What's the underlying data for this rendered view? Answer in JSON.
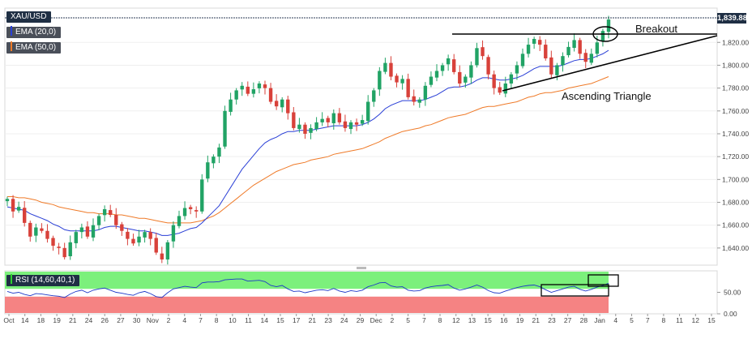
{
  "symbol_label": "XAU/USD",
  "price_label": "1,839.88",
  "indicators": [
    {
      "label": "EMA (20,0)",
      "color": "#2a3fd6"
    },
    {
      "label": "EMA (50,0)",
      "color": "#ef7a28"
    }
  ],
  "rsi_label": "RSI (14,60,40,1)",
  "annotations": {
    "breakout": "Breakout",
    "pattern": "Ascending Triangle"
  },
  "colors": {
    "bull": "#21a365",
    "bear": "#d8413a",
    "ema20": "#2a3fd6",
    "ema50": "#ef7a28",
    "rsi_line": "#1d38c8",
    "rsi_upper_zone": "#7cf07c",
    "rsi_lower_zone": "#f58383"
  },
  "chart_data": {
    "type": "candlestick",
    "instrument": "XAU/USD",
    "ylim": [
      1625,
      1850
    ],
    "y_ticks": [
      1640,
      1660,
      1680,
      1700,
      1720,
      1740,
      1760,
      1780,
      1800,
      1820
    ],
    "y_tick_labels": [
      "1,640.00",
      "1,660.00",
      "1,680.00",
      "1,700.00",
      "1,720.00",
      "1,740.00",
      "1,760.00",
      "1,780.00",
      "1,800.00",
      "1,820.00"
    ],
    "x_tick_labels": [
      "Oct",
      "14",
      "18",
      "19",
      "21",
      "24",
      "26",
      "27",
      "30",
      "Nov",
      "2",
      "4",
      "7",
      "8",
      "10",
      "11",
      "14",
      "15",
      "17",
      "21",
      "23",
      "24",
      "29",
      "Dec",
      "2",
      "5",
      "7",
      "8",
      "12",
      "13",
      "15",
      "16",
      "19",
      "21",
      "23",
      "27",
      "28",
      "Jan",
      "4",
      "5",
      "7",
      "8",
      "11",
      "12",
      "15"
    ],
    "last_price": 1839.88,
    "closes": [
      1683,
      1672,
      1676,
      1662,
      1650,
      1658,
      1655,
      1648,
      1642,
      1640,
      1632,
      1645,
      1654,
      1658,
      1650,
      1660,
      1668,
      1674,
      1669,
      1660,
      1655,
      1648,
      1644,
      1650,
      1654,
      1648,
      1636,
      1630,
      1645,
      1660,
      1668,
      1675,
      1674,
      1672,
      1700,
      1715,
      1720,
      1728,
      1760,
      1770,
      1778,
      1782,
      1775,
      1779,
      1784,
      1780,
      1768,
      1764,
      1770,
      1758,
      1745,
      1748,
      1740,
      1745,
      1750,
      1753,
      1750,
      1758,
      1750,
      1745,
      1750,
      1748,
      1752,
      1768,
      1778,
      1795,
      1802,
      1790,
      1785,
      1788,
      1772,
      1768,
      1770,
      1782,
      1790,
      1795,
      1800,
      1806,
      1794,
      1784,
      1790,
      1800,
      1815,
      1808,
      1792,
      1780,
      1776,
      1784,
      1792,
      1800,
      1810,
      1818,
      1823,
      1818,
      1806,
      1792,
      1800,
      1808,
      1816,
      1822,
      1810,
      1803,
      1810,
      1820,
      1830,
      1840
    ],
    "ema20": [
      1676,
      1675,
      1674,
      1673,
      1670,
      1668,
      1666,
      1664,
      1661,
      1659,
      1656,
      1655,
      1655,
      1655,
      1655,
      1655,
      1656,
      1658,
      1659,
      1659,
      1658,
      1657,
      1656,
      1655,
      1655,
      1654,
      1653,
      1651,
      1651,
      1652,
      1653,
      1655,
      1657,
      1658,
      1662,
      1667,
      1672,
      1677,
      1685,
      1693,
      1701,
      1709,
      1715,
      1721,
      1727,
      1732,
      1735,
      1737,
      1740,
      1742,
      1742,
      1743,
      1743,
      1743,
      1744,
      1745,
      1746,
      1747,
      1747,
      1747,
      1747,
      1747,
      1748,
      1750,
      1753,
      1757,
      1762,
      1765,
      1767,
      1769,
      1769,
      1769,
      1769,
      1770,
      1772,
      1774,
      1777,
      1780,
      1781,
      1781,
      1782,
      1784,
      1787,
      1789,
      1789,
      1788,
      1787,
      1787,
      1788,
      1789,
      1791,
      1794,
      1797,
      1799,
      1799,
      1799,
      1799,
      1800,
      1802,
      1804,
      1805,
      1805,
      1806,
      1808,
      1810,
      1813
    ],
    "ema50": [
      1685,
      1685,
      1684,
      1684,
      1683,
      1682,
      1680,
      1679,
      1678,
      1676,
      1675,
      1674,
      1673,
      1672,
      1671,
      1671,
      1670,
      1670,
      1670,
      1669,
      1669,
      1668,
      1667,
      1666,
      1666,
      1665,
      1664,
      1663,
      1662,
      1662,
      1662,
      1662,
      1662,
      1663,
      1664,
      1666,
      1668,
      1671,
      1675,
      1679,
      1683,
      1687,
      1691,
      1695,
      1698,
      1701,
      1704,
      1707,
      1709,
      1711,
      1713,
      1714,
      1715,
      1717,
      1718,
      1719,
      1720,
      1722,
      1723,
      1724,
      1725,
      1726,
      1727,
      1729,
      1731,
      1733,
      1736,
      1738,
      1740,
      1742,
      1743,
      1744,
      1745,
      1747,
      1748,
      1750,
      1752,
      1754,
      1755,
      1756,
      1757,
      1759,
      1761,
      1763,
      1764,
      1764,
      1765,
      1766,
      1767,
      1768,
      1770,
      1772,
      1773,
      1775,
      1776,
      1776,
      1777,
      1778,
      1780,
      1781,
      1782,
      1783,
      1784,
      1786,
      1788,
      1790
    ],
    "rsi": [
      52,
      48,
      50,
      45,
      42,
      47,
      46,
      44,
      42,
      41,
      38,
      46,
      52,
      55,
      49,
      55,
      58,
      60,
      55,
      50,
      48,
      45,
      43,
      49,
      52,
      47,
      40,
      38,
      49,
      58,
      61,
      64,
      62,
      61,
      72,
      74,
      74,
      75,
      79,
      80,
      81,
      81,
      76,
      77,
      78,
      75,
      66,
      63,
      66,
      58,
      52,
      53,
      49,
      52,
      55,
      56,
      54,
      59,
      53,
      50,
      54,
      52,
      55,
      63,
      67,
      72,
      73,
      65,
      62,
      63,
      55,
      53,
      54,
      60,
      63,
      65,
      66,
      68,
      60,
      55,
      58,
      62,
      67,
      62,
      54,
      49,
      48,
      53,
      57,
      61,
      64,
      66,
      67,
      63,
      56,
      50,
      54,
      58,
      62,
      64,
      57,
      53,
      57,
      62,
      66,
      71
    ],
    "rsi_ylim": [
      0,
      100
    ],
    "rsi_ticks": [
      0,
      50
    ],
    "rsi_tick_labels": [
      "0.00",
      "50.00"
    ],
    "rsi_zones": [
      40,
      60
    ],
    "resistance_level": 1826,
    "support_trendline": {
      "from": 1776,
      "to": 1826
    }
  }
}
